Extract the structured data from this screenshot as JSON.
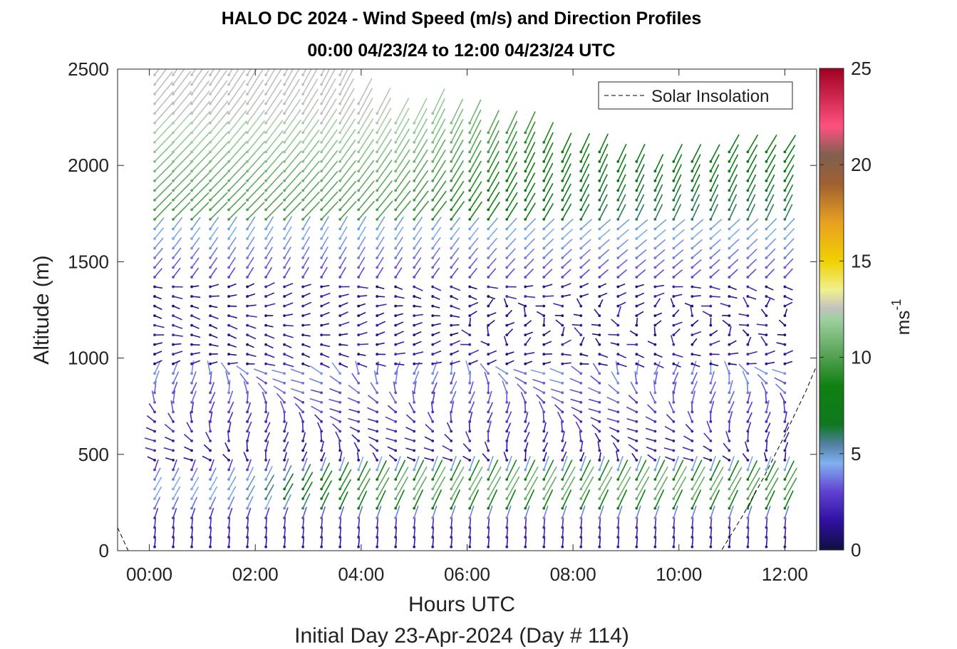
{
  "title_line1": "HALO DC 2024 - Wind Speed (m/s) and Direction Profiles",
  "title_line2": "00:00 04/23/24 to 12:00 04/23/24  UTC",
  "chart_data": {
    "type": "wind barb / quiver profile",
    "title": "HALO DC 2024 - Wind Speed (m/s) and Direction Profiles",
    "subtitle": "00:00 04/23/24 to 12:00 04/23/24  UTC",
    "xlabel": "Hours UTC",
    "xlabel2": "Initial Day 23-Apr-2024 (Day # 114)",
    "ylabel": "Altitude (m)",
    "x_ticks": [
      "00:00",
      "02:00",
      "04:00",
      "06:00",
      "08:00",
      "10:00",
      "12:00"
    ],
    "x_range_hours": [
      -0.6,
      12.6
    ],
    "y_ticks": [
      0,
      500,
      1000,
      1500,
      2000,
      2500
    ],
    "ylim": [
      0,
      2500
    ],
    "colorbar": {
      "label": "ms",
      "label_exponent": "-1",
      "ticks": [
        0,
        5,
        10,
        15,
        20,
        25
      ],
      "range": [
        0,
        25
      ],
      "colors": [
        {
          "v": 0,
          "c": "#101040"
        },
        {
          "v": 1.5,
          "c": "#3010a0"
        },
        {
          "v": 3,
          "c": "#6040d0"
        },
        {
          "v": 4.5,
          "c": "#80b0f0"
        },
        {
          "v": 5.5,
          "c": "#5080a0"
        },
        {
          "v": 6.5,
          "c": "#107820"
        },
        {
          "v": 8.5,
          "c": "#108010"
        },
        {
          "v": 10,
          "c": "#50a050"
        },
        {
          "v": 12,
          "c": "#a0d0a0"
        },
        {
          "v": 12.5,
          "c": "#c0c0c0"
        },
        {
          "v": 13.5,
          "c": "#f0f090"
        },
        {
          "v": 15,
          "c": "#f0d000"
        },
        {
          "v": 17,
          "c": "#e8a020"
        },
        {
          "v": 19,
          "c": "#a06030"
        },
        {
          "v": 20.5,
          "c": "#806050"
        },
        {
          "v": 22,
          "c": "#ff5080"
        },
        {
          "v": 25,
          "c": "#a00020"
        }
      ]
    },
    "legend": {
      "entries": [
        "Solar Insolation"
      ],
      "placement": "top-right",
      "style": "dashed black"
    },
    "solar_insolation": {
      "hours": [
        -0.6,
        -0.4,
        0.0,
        10.8,
        11.2,
        11.6,
        12.0,
        12.4,
        12.6
      ],
      "altitude": [
        120,
        0,
        0,
        0,
        180,
        380,
        600,
        830,
        960
      ]
    },
    "profile_hours": [
      0.1,
      0.45,
      0.8,
      1.15,
      1.5,
      1.85,
      2.2,
      2.55,
      2.9,
      3.25,
      3.6,
      3.95,
      4.3,
      4.65,
      5.0,
      5.35,
      5.7,
      6.05,
      6.4,
      6.75,
      7.1,
      7.45,
      7.8,
      8.15,
      8.5,
      8.85,
      9.2,
      9.55,
      9.9,
      10.25,
      10.6,
      10.95,
      11.3,
      11.65,
      12.0
    ],
    "profile_top_altitude": [
      2490,
      2490,
      2490,
      2490,
      2490,
      2490,
      2490,
      2490,
      2490,
      2490,
      2490,
      2350,
      2300,
      2250,
      2250,
      2300,
      2250,
      2250,
      2200,
      2200,
      2200,
      2150,
      2100,
      2100,
      2100,
      2050,
      2050,
      2000,
      2050,
      2050,
      2050,
      2100,
      2100,
      2100,
      2080
    ],
    "altitude_step_m": 50,
    "wind_regimes": [
      {
        "layer": "0-150 m",
        "speed_ms": "1-3",
        "direction": "southerly"
      },
      {
        "layer": "150-450 m",
        "speed_ms": "4-9",
        "direction": "south-southwesterly"
      },
      {
        "layer": "450-950 m",
        "speed_ms": "0-4",
        "direction": "variable / northwesterly"
      },
      {
        "layer": "950-1400 m",
        "speed_ms": "0-3",
        "direction": "westerly / variable"
      },
      {
        "layer": "1400-1700 m",
        "speed_ms": "3-5",
        "direction": "southwesterly"
      },
      {
        "layer": "1700-2500 m",
        "speed_ms": "6-12",
        "direction": "southwesterly"
      }
    ]
  }
}
